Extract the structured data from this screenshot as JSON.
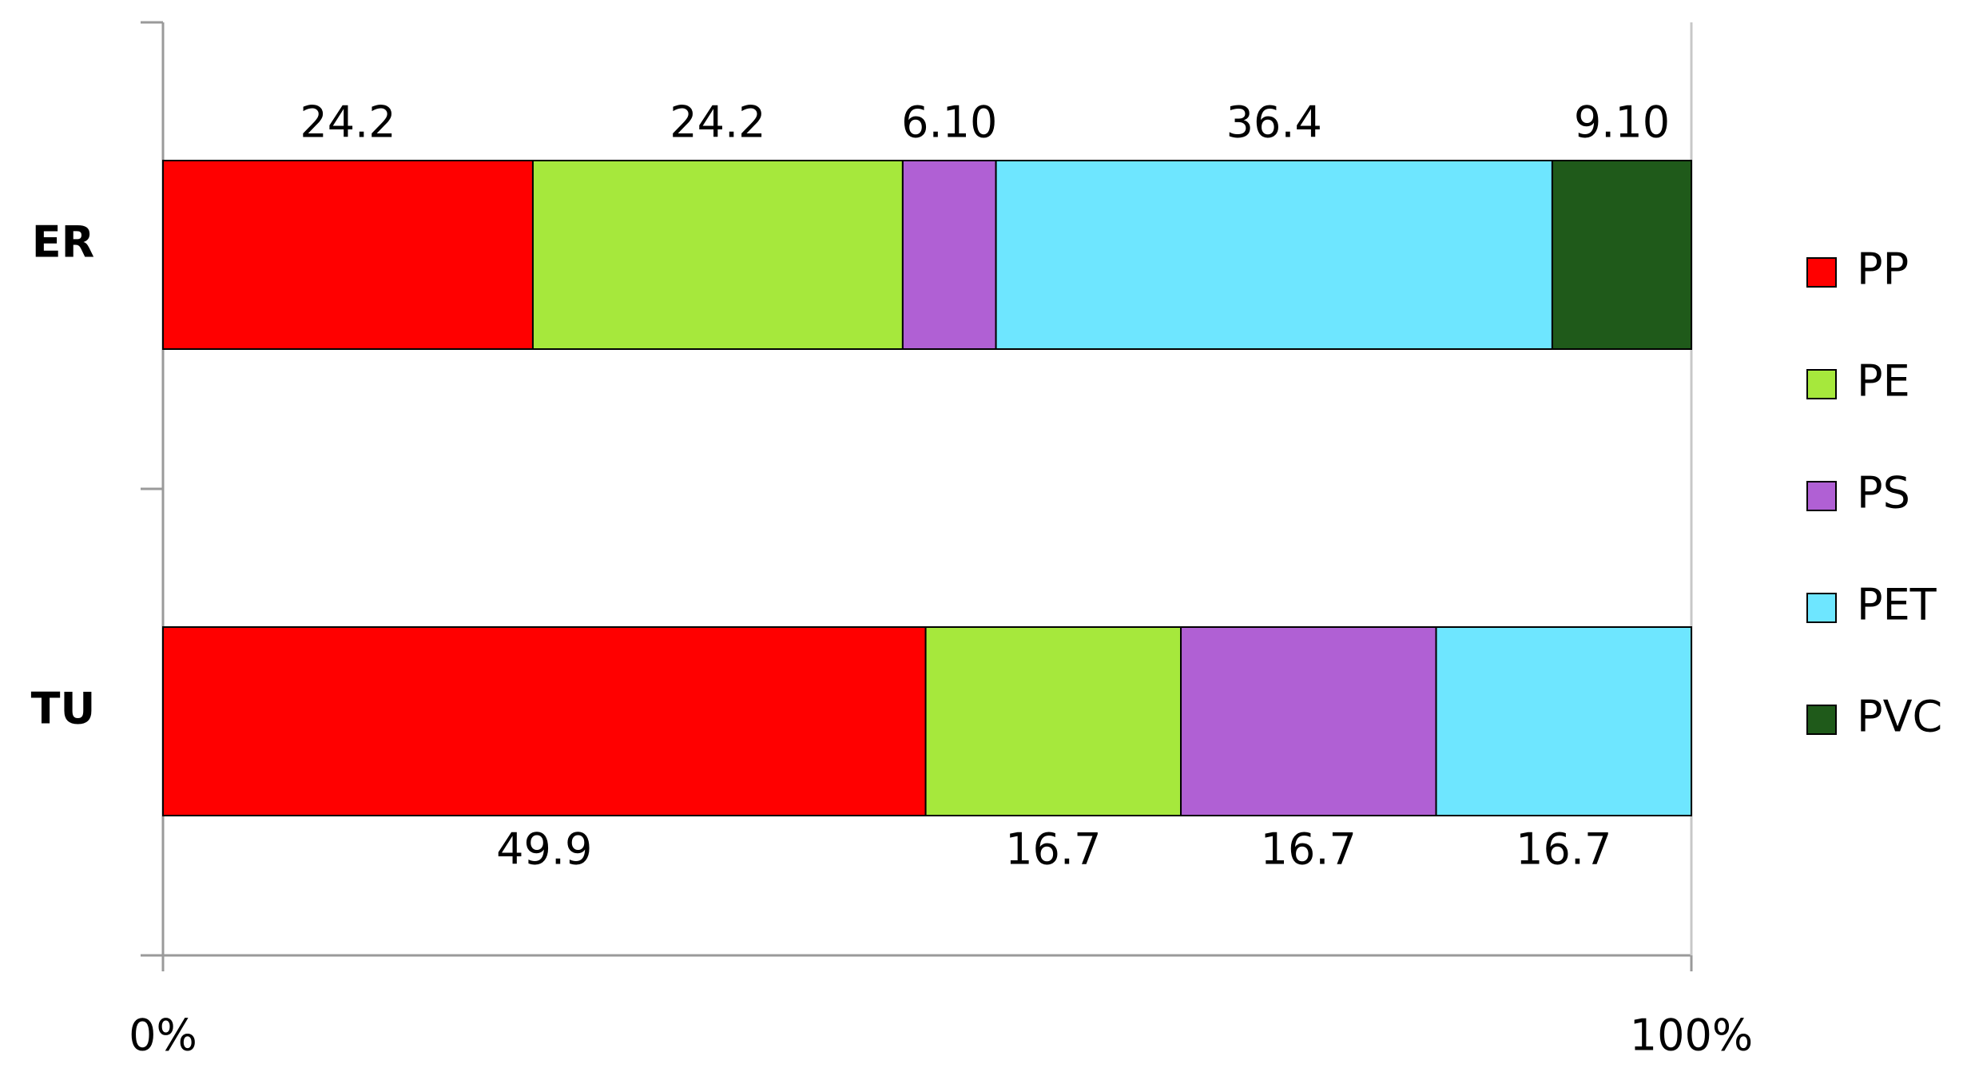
{
  "chart_data": {
    "type": "stacked-bar-horizontal",
    "categories": [
      "ER",
      "TU"
    ],
    "series": [
      {
        "name": "PP",
        "color": "#ff0000",
        "values": [
          24.2,
          49.9
        ]
      },
      {
        "name": "PE",
        "color": "#a6e83c",
        "values": [
          24.2,
          16.7
        ]
      },
      {
        "name": "PS",
        "color": "#b060d4",
        "values": [
          6.1,
          16.7
        ],
        "value_labels": [
          "6.10",
          "16.7"
        ]
      },
      {
        "name": "PET",
        "color": "#6ee6ff",
        "values": [
          36.4,
          16.7
        ]
      },
      {
        "name": "PVC",
        "color": "#1f5a1a",
        "values": [
          9.1,
          null
        ],
        "value_labels": [
          "9.10",
          null
        ]
      }
    ],
    "xlim": [
      0,
      100
    ],
    "xticks": [
      {
        "value": 0,
        "label": "0%"
      },
      {
        "value": 100,
        "label": "100%"
      }
    ],
    "legend": "right"
  }
}
